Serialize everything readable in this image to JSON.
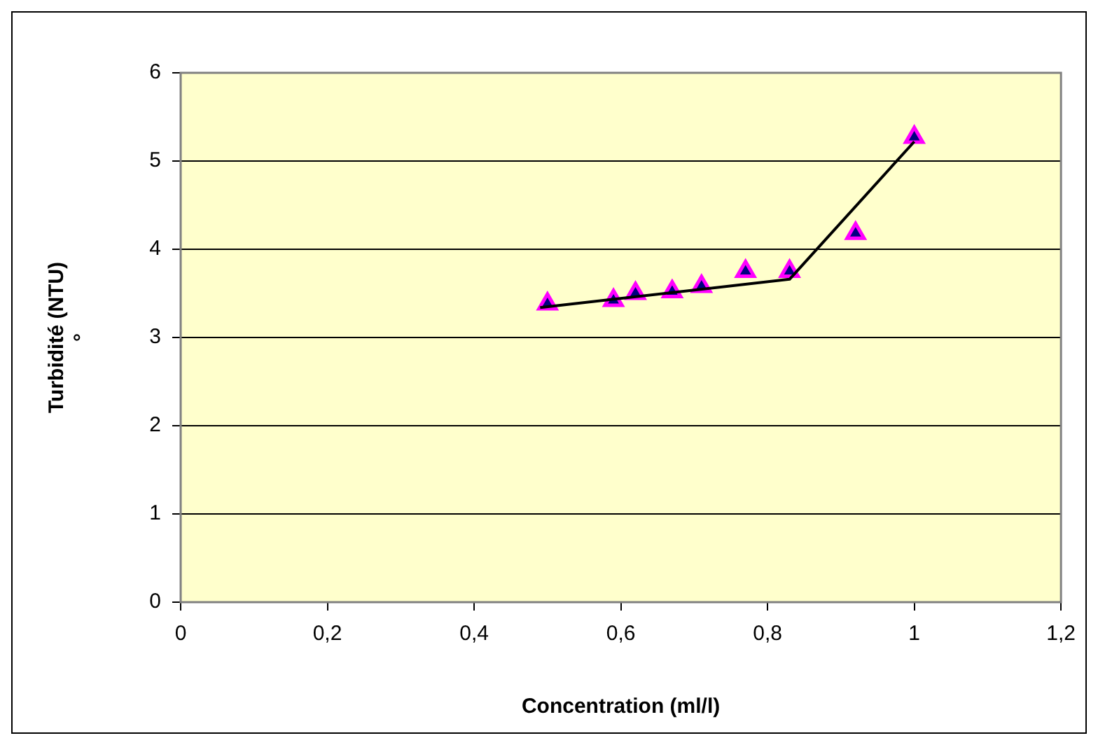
{
  "chart_data": {
    "type": "scatter",
    "xlabel": "Concentration (ml/l)",
    "ylabel": "Turbidité (NTU)\n°",
    "xlim": [
      0,
      1.2
    ],
    "xticks": [
      0,
      {
        "value": 0.2,
        "label": "0,2"
      },
      {
        "value": 0.4,
        "label": "0,4"
      },
      {
        "value": 0.6,
        "label": "0,6"
      },
      {
        "value": 0.8,
        "label": "0,8"
      },
      1,
      {
        "value": 1.2,
        "label": "1,2"
      }
    ],
    "ylim": [
      0,
      6
    ],
    "yticks": [
      0,
      1,
      2,
      3,
      4,
      5,
      6
    ],
    "grid": "y",
    "legend": false,
    "marker": "triangle",
    "series": [
      {
        "color": "#ff00ff",
        "x": [
          0.5,
          0.59,
          0.62,
          0.67,
          0.71,
          0.77,
          0.83,
          0.92,
          1.0
        ],
        "values": [
          3.38,
          3.42,
          3.5,
          3.52,
          3.58,
          3.75,
          3.75,
          4.18,
          5.27
        ]
      },
      {
        "type": "line",
        "color": "#000000",
        "marker": "none",
        "line_style": "solid",
        "x": [
          0.49,
          0.83,
          1.0
        ],
        "values": [
          3.34,
          3.66,
          5.22
        ]
      }
    ]
  }
}
